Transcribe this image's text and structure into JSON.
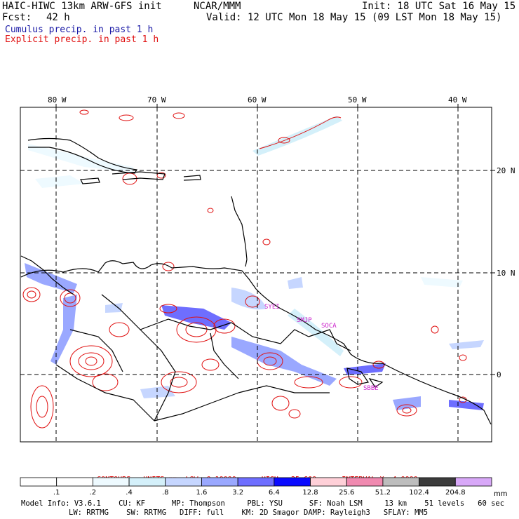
{
  "header": {
    "model_title": "HAIC-HIWC 13km ARW-GFS init",
    "org": "NCAR/MMM",
    "init": "Init: 18 UTC Sat 16 May 15",
    "fcst_label": "Fcst:",
    "fcst_value": "42 h",
    "valid": "Valid: 12 UTC Mon 18 May 15 (09 LST Mon 18 May 15)",
    "cumulus_label": "Cumulus precip. in past 1 h",
    "explicit_label": "Explicit precip. in past 1 h"
  },
  "map": {
    "lon_labels": [
      "80 W",
      "70 W",
      "60 W",
      "50 W",
      "40 W"
    ],
    "lat_labels": [
      "20 N",
      "10 N",
      "0"
    ],
    "station_labels": [
      "SYEI",
      "SMJP",
      "SOCA",
      "SBBE"
    ]
  },
  "contours": {
    "units_label": "CONTOURS:  UNITS=mm  LOW= 0.10000",
    "high_label": "HIGH=  25.600",
    "interval_label": "INTERVAL=X  4.0000"
  },
  "colorbar": {
    "unit": "mm",
    "ticks": [
      ".1",
      ".2",
      ".4",
      ".8",
      "1.6",
      "3.2",
      "6.4",
      "12.8",
      "25.6",
      "51.2",
      "102.4",
      "204.8"
    ],
    "colors": [
      "#ffffff",
      "#ffffff",
      "#eefaff",
      "#d4f0fa",
      "#c6d6ff",
      "#9aa8ff",
      "#6e6eff",
      "#0a0aff",
      "#ffd0d8",
      "#f08ab0",
      "#bdbdbd",
      "#3c3c3c",
      "#d8a8f8"
    ]
  },
  "footer": {
    "line1": "Model Info: V3.6.1    CU: KF      MP: Thompson     PBL: YSU      SF: Noah LSM     13 km    51 levels   60 sec",
    "line2": "LW: RRTMG    SW: RRTMG   DIFF: full    KM: 2D Smagor DAMP: Rayleigh3   SFLAY: MM5"
  }
}
